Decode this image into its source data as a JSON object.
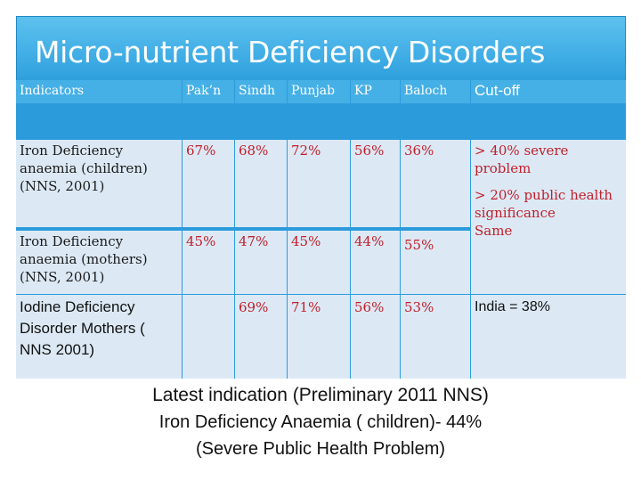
{
  "title": "Micro-nutrient Deficiency Disorders",
  "table": {
    "headers": {
      "indicators": "Indicators",
      "pakn": "Pak’n",
      "sindh": "Sindh",
      "punjab": "Punjab",
      "kp": "KP",
      "baloch": "Baloch",
      "cutoff": "Cut-off"
    },
    "rows": [
      {
        "indicator": "Iron Deficiency anaemia (children) (NNS, 2001)",
        "pakn": "67%",
        "sindh": "68%",
        "punjab": "72%",
        "kp": "56%",
        "baloch": "36%"
      },
      {
        "indicator": "Iron Deficiency anaemia (mothers) (NNS, 2001)",
        "pakn": "45%",
        "sindh": "47%",
        "punjab": "45%",
        "kp": "44%",
        "baloch": "55%"
      },
      {
        "indicator": "Iodine Deficiency Disorder Mothers ( NNS 2001)",
        "pakn": "",
        "sindh": "69%",
        "punjab": "71%",
        "kp": "56%",
        "baloch": "53%",
        "cutoff": "India = 38%"
      }
    ],
    "cutoff_block": {
      "line1": "> 40%  severe problem",
      "line2": "> 20% public health significance",
      "line3": "Same"
    }
  },
  "footer": {
    "line1": "Latest indication (Preliminary 2011 NNS)",
    "line2": "Iron Deficiency Anaemia ( children)- 44%",
    "line3": "(Severe Public Health Problem)"
  }
}
